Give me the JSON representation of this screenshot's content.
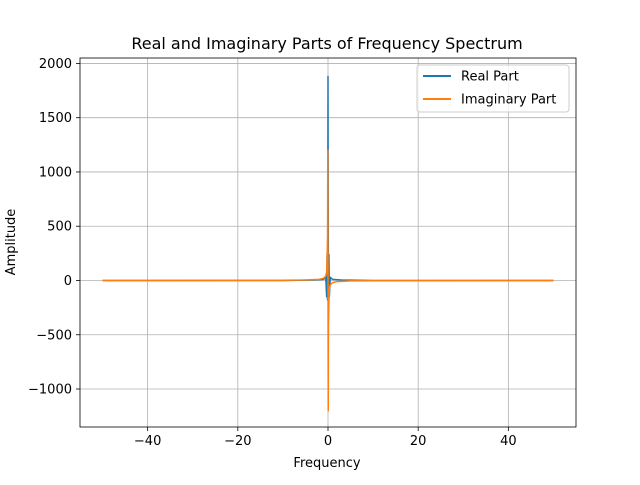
{
  "chart_data": {
    "type": "line",
    "title": "Real and Imaginary Parts of Frequency Spectrum",
    "xlabel": "Frequency",
    "ylabel": "Amplitude",
    "xlim": [
      -55,
      55
    ],
    "ylim": [
      -1350,
      2050
    ],
    "xticks": [
      -40,
      -20,
      0,
      20,
      40
    ],
    "xtick_labels": [
      "−40",
      "−20",
      "0",
      "20",
      "40"
    ],
    "yticks": [
      -1000,
      -500,
      0,
      500,
      1000,
      1500,
      2000
    ],
    "ytick_labels": [
      "−1000",
      "−500",
      "0",
      "500",
      "1000",
      "1500",
      "2000"
    ],
    "grid": true,
    "legend_position": "top-right",
    "series": [
      {
        "name": "Real Part",
        "color": "#1f77b4",
        "x": [
          -50,
          -30,
          -10,
          -3,
          -1,
          -0.5,
          -0.3,
          -0.2,
          -0.1,
          -0.05,
          0,
          0.05,
          0.1,
          0.2,
          0.3,
          0.5,
          1,
          3,
          10,
          30,
          50
        ],
        "y": [
          0,
          0,
          0,
          5,
          10,
          30,
          -150,
          240,
          -180,
          500,
          1880,
          500,
          -180,
          240,
          -150,
          30,
          10,
          5,
          0,
          0,
          0
        ]
      },
      {
        "name": "Imaginary Part",
        "color": "#ff7f0e",
        "x": [
          -50,
          -30,
          -10,
          -5,
          -2,
          -1,
          -0.5,
          -0.3,
          -0.2,
          -0.1,
          -0.05,
          0,
          0.05,
          0.1,
          0.2,
          0.3,
          0.5,
          1,
          2,
          5,
          10,
          30,
          50
        ],
        "y": [
          0,
          1,
          2,
          4,
          10,
          20,
          40,
          80,
          200,
          420,
          1200,
          0,
          -1200,
          -420,
          -200,
          -80,
          -40,
          -20,
          -10,
          -4,
          -2,
          -1,
          0
        ]
      }
    ]
  }
}
